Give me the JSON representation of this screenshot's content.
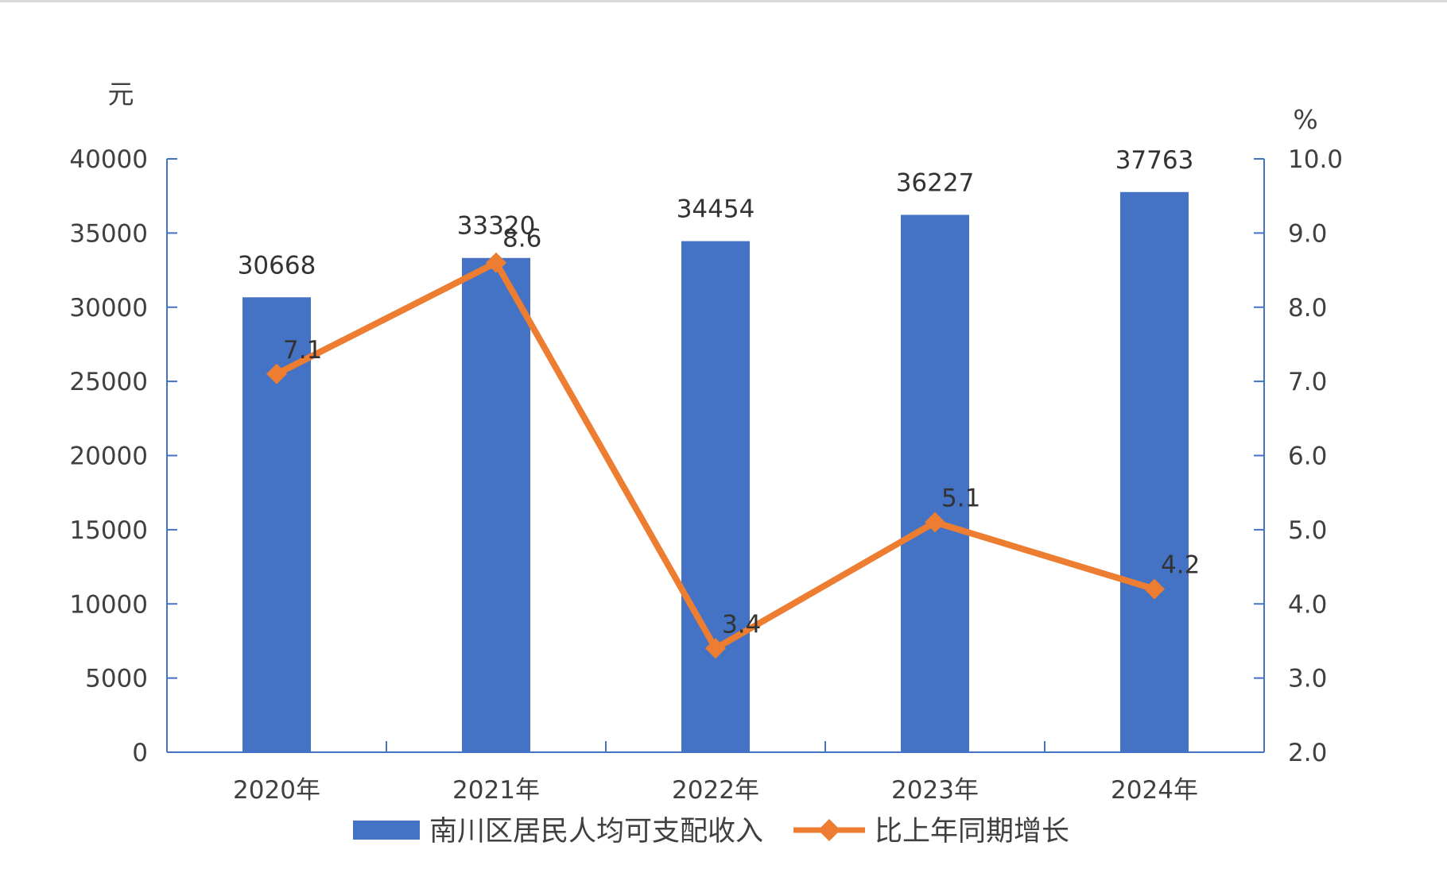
{
  "chart_data": {
    "type": "bar",
    "categories": [
      "2020年",
      "2021年",
      "2022年",
      "2023年",
      "2024年"
    ],
    "y_left": {
      "unit": "元",
      "ylim": [
        0,
        40000
      ],
      "ticks": [
        "0",
        "5000",
        "10000",
        "15000",
        "20000",
        "25000",
        "30000",
        "35000",
        "40000"
      ]
    },
    "y_right": {
      "unit": "%",
      "ylim": [
        2.0,
        10.0
      ],
      "ticks": [
        "2.0",
        "3.0",
        "4.0",
        "5.0",
        "6.0",
        "7.0",
        "8.0",
        "9.0",
        "10.0"
      ]
    },
    "series": [
      {
        "name": "南川区居民人均可支配收入",
        "type": "bar",
        "axis": "left",
        "color": "#4472c4",
        "values": [
          30668,
          33320,
          34454,
          36227,
          37763
        ],
        "labels": [
          "30668",
          "33320",
          "34454",
          "36227",
          "37763"
        ]
      },
      {
        "name": "比上年同期增长",
        "type": "line",
        "axis": "right",
        "color": "#ed7d31",
        "marker": "diamond",
        "values": [
          7.1,
          8.6,
          3.4,
          5.1,
          4.2
        ],
        "labels": [
          "7.1",
          "8.6",
          "3.4",
          "5.1",
          "4.2"
        ]
      }
    ],
    "grid": false,
    "legend": "bottom"
  }
}
